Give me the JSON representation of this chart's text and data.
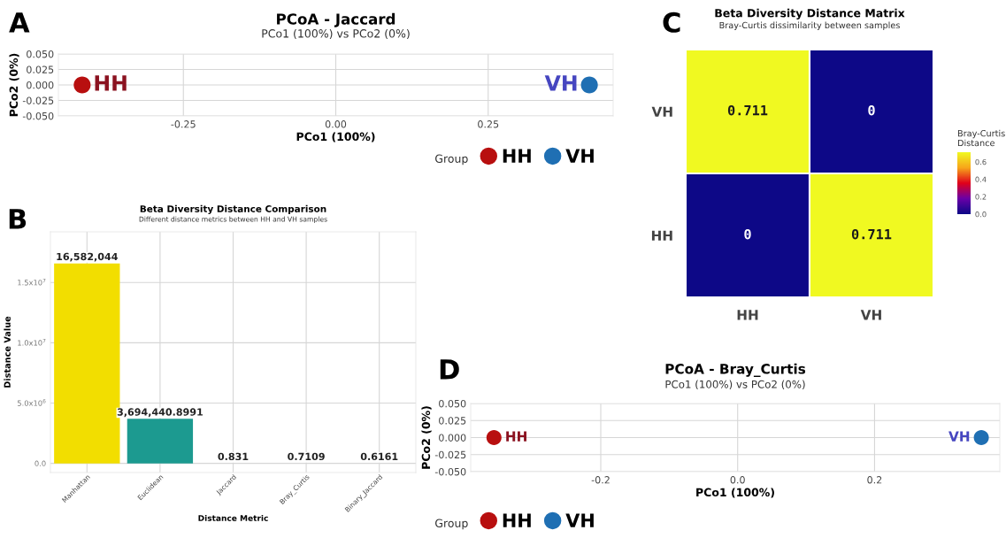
{
  "chart_data": [
    {
      "type": "scatter",
      "title": "PCoA - Jaccard",
      "subtitle": "PCo1 (100%) vs PCo2 (0%)",
      "xlabel": "PCo1 (100%)",
      "ylabel": "PCo2 (0%)",
      "legend_title": "Group",
      "legend": "bottom",
      "grid": true,
      "marker": "circle",
      "xlim": [
        -0.455,
        0.455
      ],
      "xticks": [
        -0.25,
        {
          "value": 0,
          "label": "0.00"
        },
        0.25
      ],
      "ylim": [
        -0.05,
        0.05
      ],
      "yticks": [
        {
          "value": -0.05,
          "label": "-0.050"
        },
        {
          "value": -0.025,
          "label": "-0.025"
        },
        {
          "value": 0,
          "label": "0.000"
        },
        {
          "value": 0.025,
          "label": "0.025"
        },
        {
          "value": 0.05,
          "label": "0.050"
        }
      ],
      "series": [
        {
          "name": "HH",
          "color": "#b80f0f",
          "x": [
            -0.416
          ],
          "values": [
            0
          ]
        },
        {
          "name": "VH",
          "color": "#1f6fb3",
          "x": [
            0.416
          ],
          "values": [
            0
          ]
        }
      ],
      "annotations": [
        "A"
      ]
    },
    {
      "type": "bar",
      "title": "Beta Diversity Distance Comparison",
      "subtitle": "Different distance metrics between HH and VH samples",
      "xlabel": "Distance Metric",
      "ylabel": "Distance Value",
      "grid": true,
      "categories": [
        "Manhattan",
        "Euclidean",
        "Jaccard",
        "Bray_Curtis",
        "Binary_Jaccard"
      ],
      "values": [
        16582044,
        3694440.8991,
        0.831,
        0.7109,
        0.6161
      ],
      "value_labels": [
        "16,582,044",
        "3,694,440.8991",
        "0.831",
        "0.7109",
        "0.6161"
      ],
      "colors": [
        "#f2de00",
        "#1c9a90",
        "#3b528b",
        "#5dc863",
        "#440154"
      ],
      "ylim": [
        -760000,
        19200000
      ],
      "yticks": [
        {
          "value": 0,
          "label": "0.0"
        },
        {
          "value": 5000000,
          "label": "5.0x10$^{6}$"
        },
        {
          "value": 10000000,
          "label": "1.0x10$^{7}$"
        },
        {
          "value": 15000000,
          "label": "1.5x10$^{7}$"
        }
      ],
      "annotations": [
        "B"
      ]
    },
    {
      "type": "heatmap",
      "title": "Beta Diversity Distance Matrix",
      "subtitle": "Bray-Curtis dissimilarity between samples",
      "clabel": "Bray-Curtis\nDistance",
      "categories": [
        "HH",
        "VH"
      ],
      "y_categories": [
        "VH",
        "HH"
      ],
      "cells": [
        [
          0.711,
          0
        ],
        [
          0,
          0.711
        ]
      ],
      "cell_labels": [
        [
          "0.711",
          "0"
        ],
        [
          "0",
          "0.711"
        ]
      ],
      "clim": [
        0,
        0.711
      ],
      "cticks": [
        {
          "value": 0,
          "label": "0.0"
        },
        {
          "value": 0.2,
          "label": "0.2"
        },
        {
          "value": 0.4,
          "label": "0.4"
        },
        {
          "value": 0.6,
          "label": "0.6"
        }
      ],
      "annotations": [
        "C"
      ]
    },
    {
      "type": "scatter",
      "title": "PCoA - Bray_Curtis",
      "subtitle": "PCo1 (100%) vs PCo2 (0%)",
      "xlabel": "PCo1 (100%)",
      "ylabel": "PCo2 (0%)",
      "legend_title": "Group",
      "legend": "bottom",
      "grid": true,
      "marker": "circle",
      "xlim": [
        -0.39,
        0.383
      ],
      "xticks": [
        -0.2,
        {
          "value": 0,
          "label": "0.0"
        },
        0.2
      ],
      "ylim": [
        -0.05,
        0.05
      ],
      "yticks": [
        {
          "value": -0.05,
          "label": "-0.050"
        },
        {
          "value": -0.025,
          "label": "-0.025"
        },
        {
          "value": 0,
          "label": "0.000"
        },
        {
          "value": 0.025,
          "label": "0.025"
        },
        {
          "value": 0.05,
          "label": "0.050"
        }
      ],
      "series": [
        {
          "name": "HH",
          "color": "#b80f0f",
          "x": [
            -0.356
          ],
          "values": [
            0
          ]
        },
        {
          "name": "VH",
          "color": "#1f6fb3",
          "x": [
            0.356
          ],
          "values": [
            0
          ]
        }
      ],
      "annotations": [
        "D"
      ]
    }
  ]
}
